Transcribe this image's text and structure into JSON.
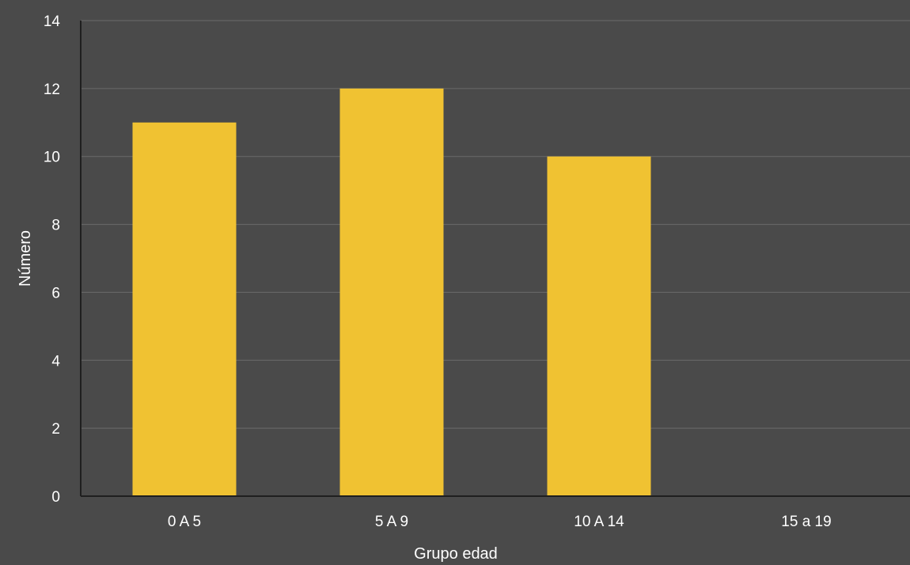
{
  "chart_data": {
    "type": "bar",
    "categories": [
      "0 A 5",
      "5 A 9",
      "10 A 14",
      "15 a 19"
    ],
    "values": [
      11,
      12,
      10,
      0
    ],
    "xlabel": "Grupo edad",
    "ylabel": "Número",
    "ylim": [
      0,
      14
    ],
    "yticks": [
      0,
      2,
      4,
      6,
      8,
      10,
      12,
      14
    ],
    "grid": true,
    "colors": {
      "bar": "#f0c232",
      "background": "#4a4a4a",
      "grid": "#6a6a6a",
      "axis": "#1f1f1f",
      "text": "#ffffff"
    }
  }
}
